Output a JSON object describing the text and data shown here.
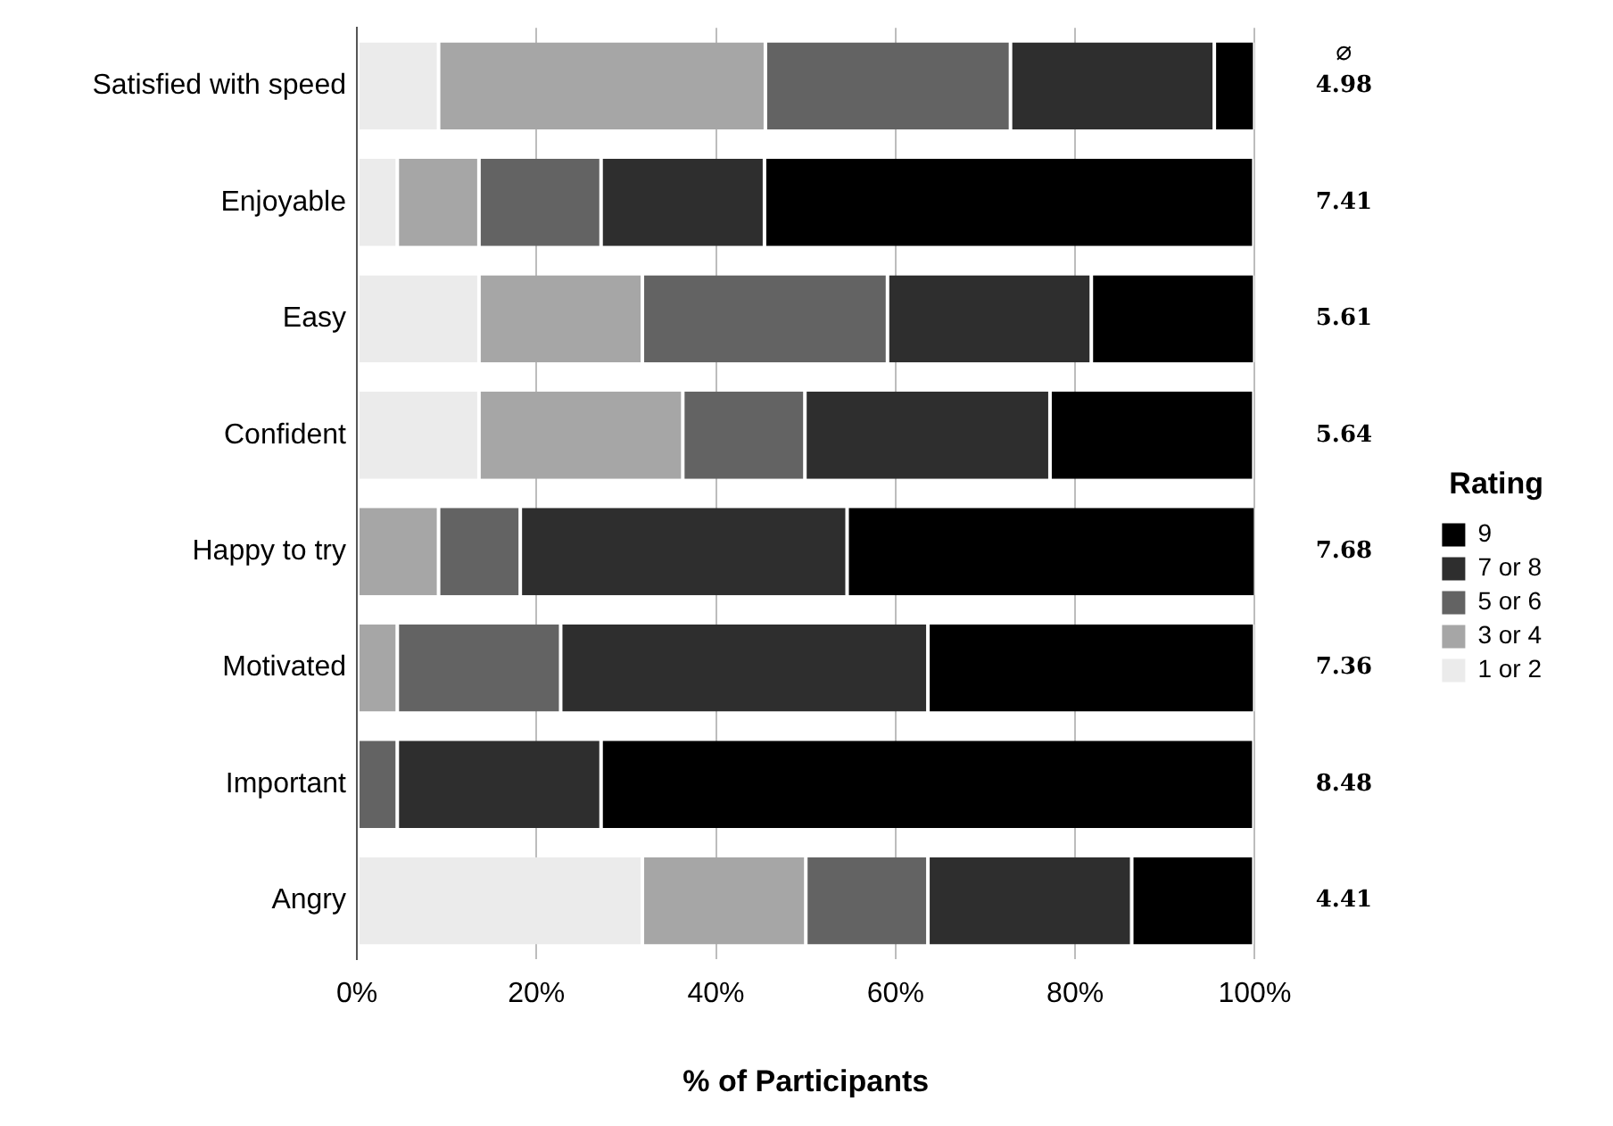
{
  "chart_data": {
    "type": "bar",
    "orientation": "horizontal",
    "stacked": true,
    "xlabel": "% of Participants",
    "legend_title": "Rating",
    "legend": "right",
    "grid": "x",
    "categories": [
      "Satisfied with speed",
      "Enjoyable",
      "Easy",
      "Confident",
      "Happy to try",
      "Motivated",
      "Important",
      "Angry"
    ],
    "series": [
      {
        "name": "1 or 2",
        "color": "#ebebeb",
        "values": [
          9.1,
          4.5,
          13.6,
          13.6,
          0,
          0,
          0,
          31.8
        ]
      },
      {
        "name": "3 or 4",
        "color": "#a6a6a6",
        "values": [
          36.4,
          9.1,
          18.2,
          22.7,
          9.1,
          4.5,
          0,
          18.2
        ]
      },
      {
        "name": "5 or 6",
        "color": "#636363",
        "values": [
          27.3,
          13.6,
          27.3,
          13.6,
          9.1,
          18.2,
          4.5,
          13.6
        ]
      },
      {
        "name": "7 or 8",
        "color": "#2e2e2e",
        "values": [
          22.7,
          18.2,
          22.7,
          27.3,
          36.4,
          40.9,
          22.7,
          22.7
        ]
      },
      {
        "name": "9",
        "color": "#000000",
        "values": [
          4.5,
          54.5,
          18.2,
          22.7,
          45.5,
          36.4,
          72.7,
          13.6
        ]
      }
    ],
    "xlim": [
      0,
      100
    ],
    "xticks": [
      {
        "value": 0,
        "label": "0%"
      },
      {
        "value": 20,
        "label": "20%"
      },
      {
        "value": 40,
        "label": "40%"
      },
      {
        "value": 60,
        "label": "60%"
      },
      {
        "value": 80,
        "label": "80%"
      },
      {
        "value": 100,
        "label": "100%"
      }
    ],
    "annotations": [
      "⌀",
      "4.98",
      "7.41",
      "5.61",
      "5.64",
      "7.68",
      "7.36",
      "8.48",
      "4.41"
    ]
  }
}
